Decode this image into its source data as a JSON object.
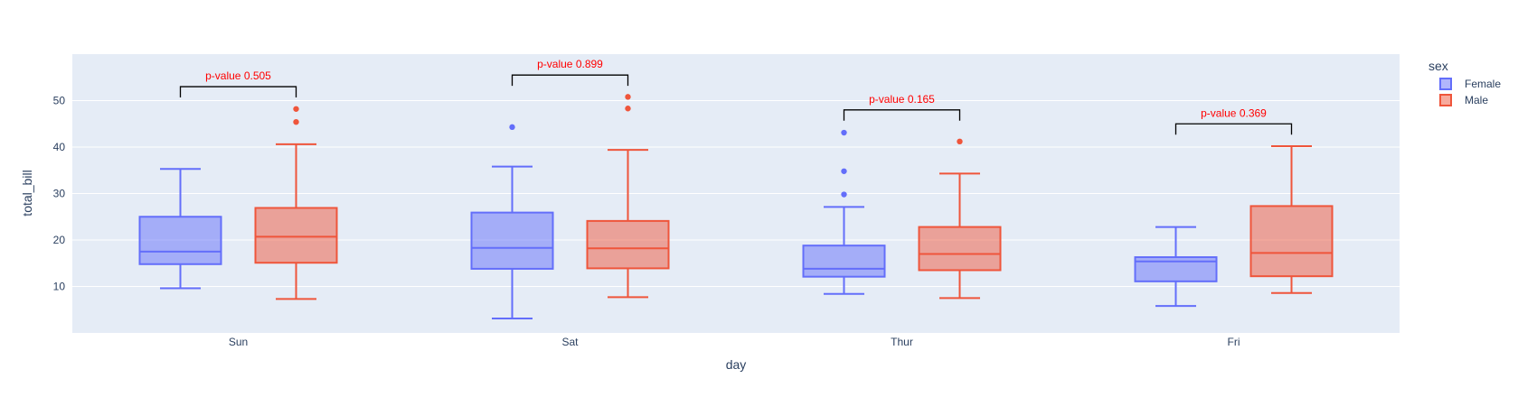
{
  "chart_data": {
    "type": "box",
    "xlabel": "day",
    "ylabel": "total_bill",
    "ylim": [
      0,
      60
    ],
    "yticks": [
      10,
      20,
      30,
      40,
      50
    ],
    "grid": true,
    "legend": {
      "title": "sex",
      "placement": "top-right outside"
    },
    "categories": [
      "Sun",
      "Sat",
      "Thur",
      "Fri"
    ],
    "series": [
      {
        "name": "Female",
        "color": "#636efa",
        "boxes": [
          {
            "category": "Sun",
            "lowerfence": 9.6,
            "q1": 14.8,
            "median": 17.5,
            "q3": 25.0,
            "upperfence": 35.3,
            "outliers": []
          },
          {
            "category": "Sat",
            "lowerfence": 3.1,
            "q1": 13.8,
            "median": 18.3,
            "q3": 25.9,
            "upperfence": 35.8,
            "outliers": [
              44.3
            ]
          },
          {
            "category": "Thur",
            "lowerfence": 8.4,
            "q1": 12.1,
            "median": 13.8,
            "q3": 18.8,
            "upperfence": 27.1,
            "outliers": [
              29.8,
              34.8,
              43.1
            ]
          },
          {
            "category": "Fri",
            "lowerfence": 5.8,
            "q1": 11.1,
            "median": 15.4,
            "q3": 16.3,
            "upperfence": 22.8,
            "outliers": []
          }
        ]
      },
      {
        "name": "Male",
        "color": "#ef553b",
        "boxes": [
          {
            "category": "Sun",
            "lowerfence": 7.3,
            "q1": 15.1,
            "median": 20.7,
            "q3": 26.9,
            "upperfence": 40.6,
            "outliers": [
              45.4,
              48.2
            ]
          },
          {
            "category": "Sat",
            "lowerfence": 7.7,
            "q1": 13.9,
            "median": 18.2,
            "q3": 24.1,
            "upperfence": 39.4,
            "outliers": [
              48.3,
              50.8
            ]
          },
          {
            "category": "Thur",
            "lowerfence": 7.5,
            "q1": 13.5,
            "median": 17.0,
            "q3": 22.8,
            "upperfence": 34.3,
            "outliers": [
              41.2
            ]
          },
          {
            "category": "Fri",
            "lowerfence": 8.6,
            "q1": 12.2,
            "median": 17.2,
            "q3": 27.3,
            "upperfence": 40.2,
            "outliers": []
          }
        ]
      }
    ],
    "annotations": [
      {
        "category": "Sun",
        "text": "p-value 0.505",
        "y": 53.0
      },
      {
        "category": "Sat",
        "text": "p-value 0.899",
        "y": 55.5
      },
      {
        "category": "Thur",
        "text": "p-value 0.165",
        "y": 48.0
      },
      {
        "category": "Fri",
        "text": "p-value 0.369",
        "y": 45.0
      }
    ],
    "annotation_color": "#ff0000"
  }
}
